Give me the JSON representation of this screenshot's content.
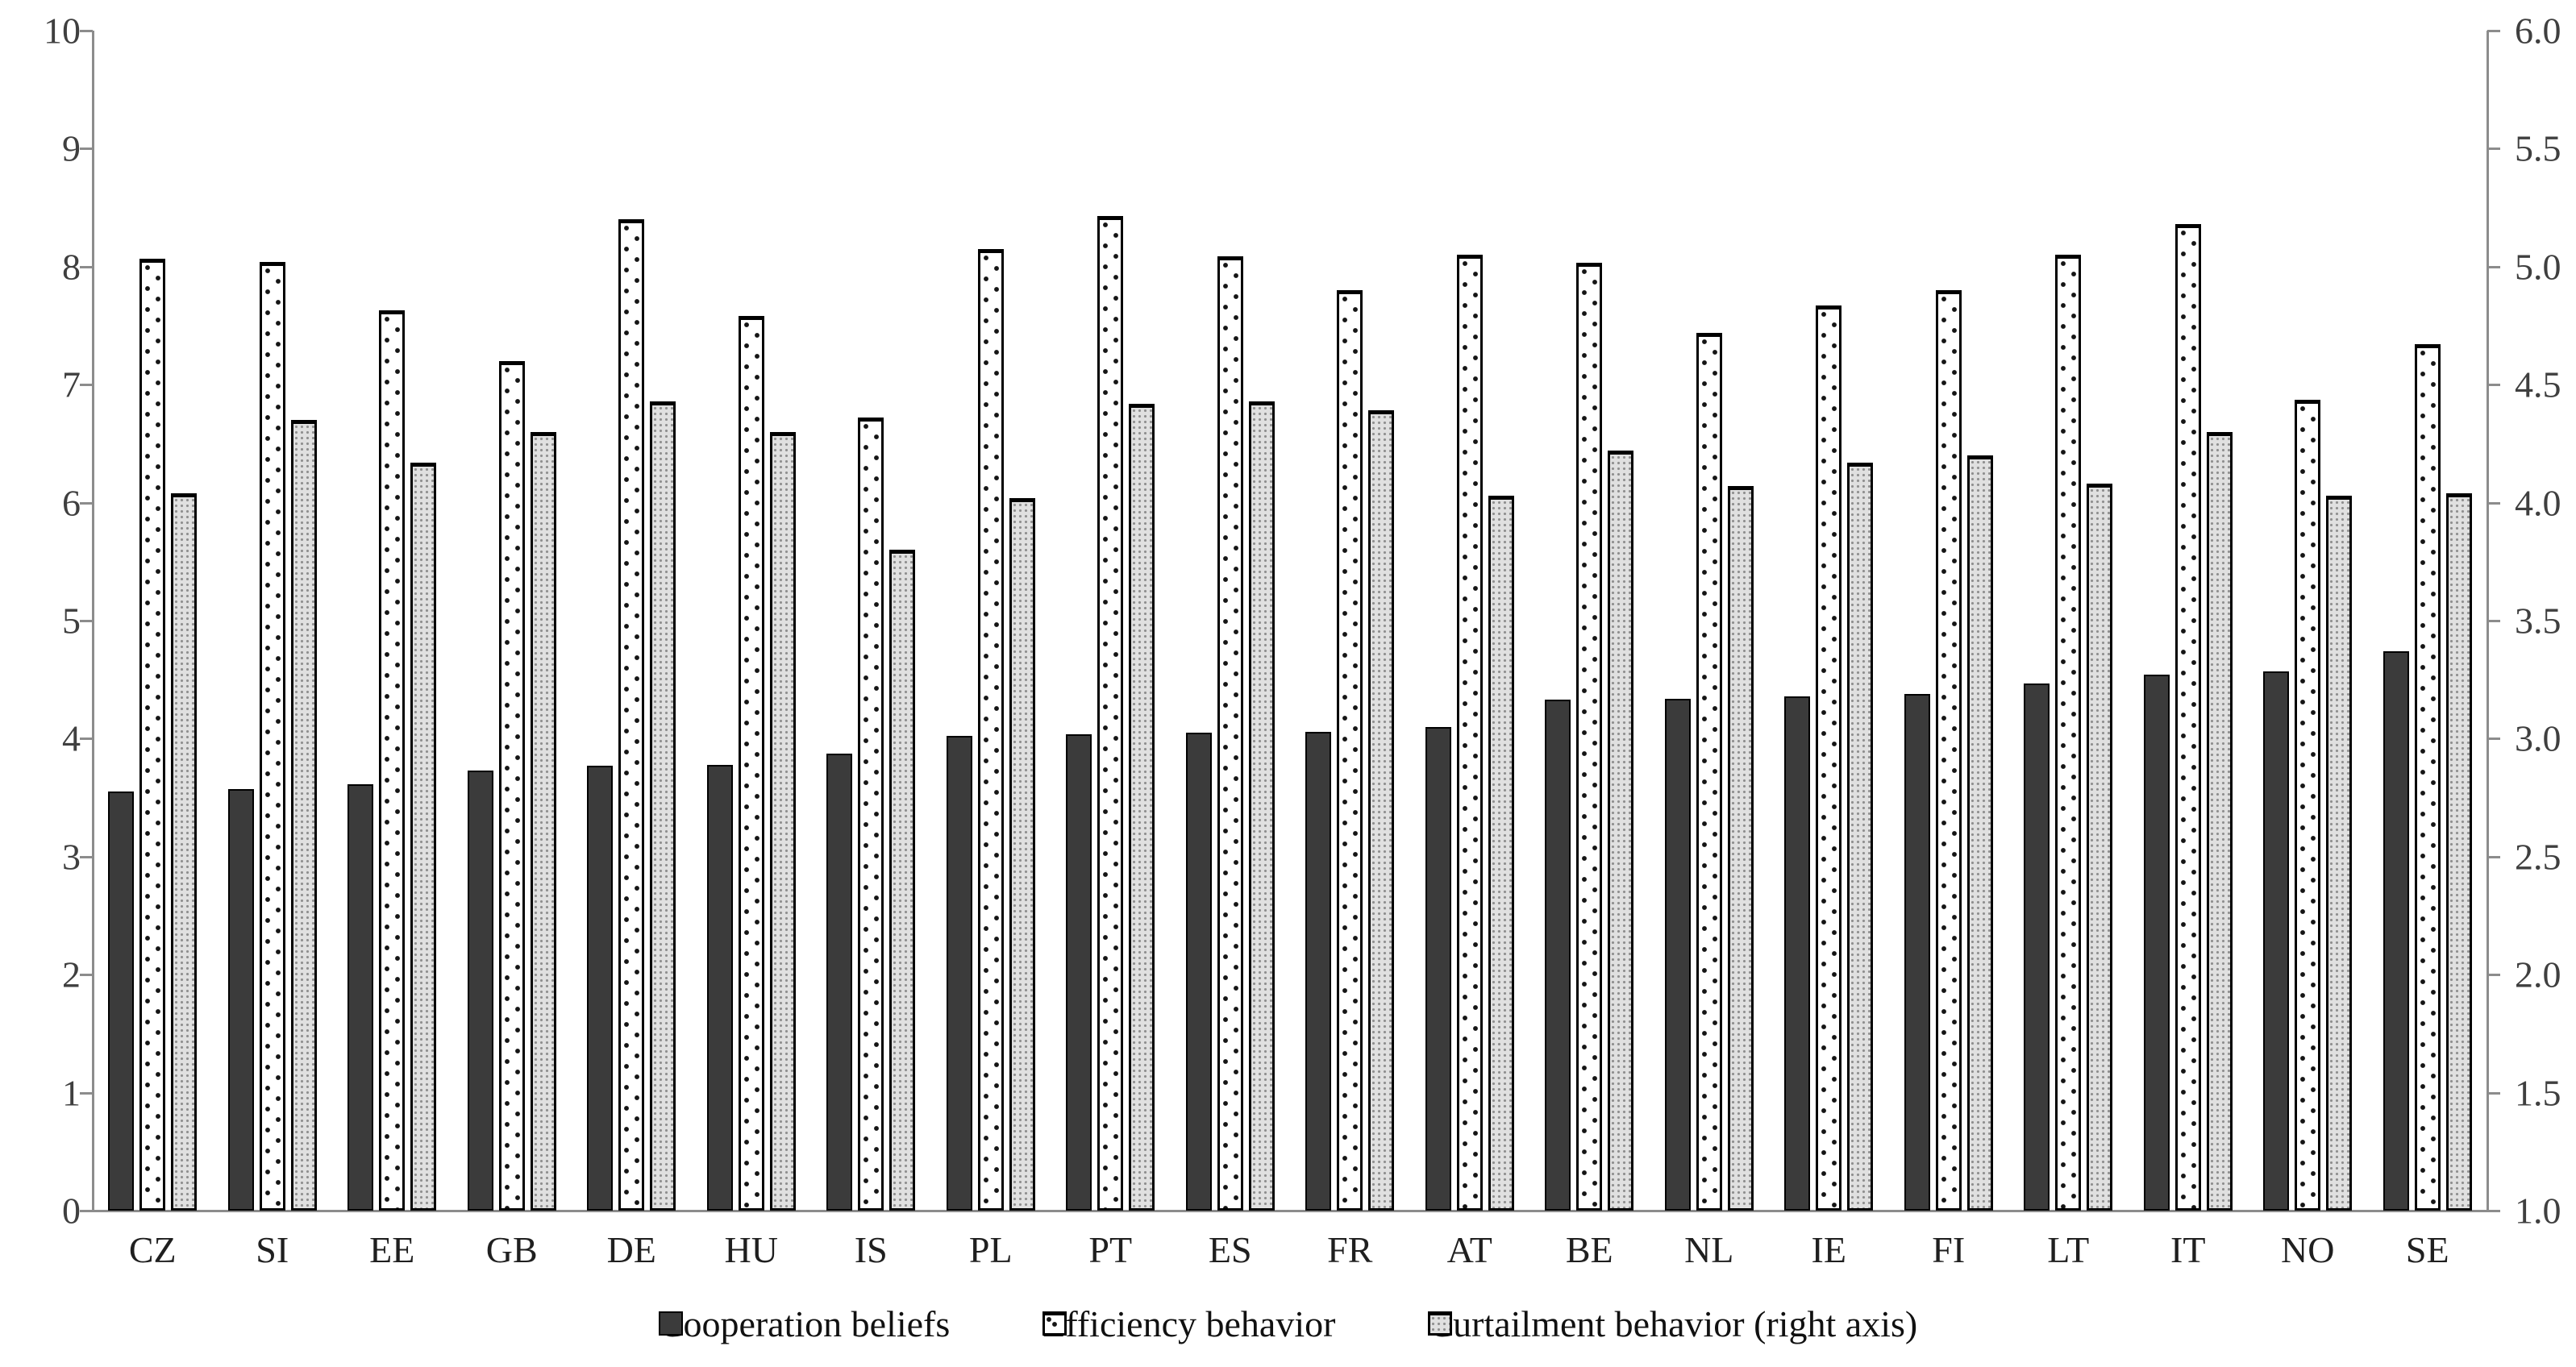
{
  "chart_data": {
    "type": "bar",
    "title": "",
    "categories": [
      "CZ",
      "SI",
      "EE",
      "GB",
      "DE",
      "HU",
      "IS",
      "PL",
      "PT",
      "ES",
      "FR",
      "AT",
      "BE",
      "NL",
      "IE",
      "FI",
      "LT",
      "IT",
      "NO",
      "SE"
    ],
    "series": [
      {
        "name": "Cooperation beliefs",
        "key": "cooperation",
        "axis": "left",
        "values": [
          3.55,
          3.57,
          3.61,
          3.73,
          3.77,
          3.78,
          3.87,
          4.02,
          4.04,
          4.05,
          4.06,
          4.1,
          4.33,
          4.34,
          4.36,
          4.38,
          4.47,
          4.54,
          4.57,
          4.74
        ]
      },
      {
        "name": "Efficiency behavior",
        "key": "efficiency",
        "axis": "left",
        "values": [
          8.07,
          8.04,
          7.63,
          7.2,
          8.4,
          7.58,
          6.72,
          8.15,
          8.43,
          8.09,
          7.8,
          8.1,
          8.03,
          7.44,
          7.67,
          7.8,
          8.1,
          8.36,
          6.87,
          7.34
        ]
      },
      {
        "name": "Curtailment behavior (right axis)",
        "key": "curtailment",
        "axis": "right",
        "values": [
          4.04,
          4.35,
          4.17,
          4.3,
          4.43,
          4.3,
          3.8,
          4.02,
          4.42,
          4.43,
          4.39,
          4.03,
          4.22,
          4.07,
          4.17,
          4.2,
          4.08,
          4.3,
          4.03,
          4.04
        ]
      }
    ],
    "left_axis": {
      "min": 0,
      "max": 10,
      "step": 1,
      "tick_labels": [
        "0",
        "1",
        "2",
        "3",
        "4",
        "5",
        "6",
        "7",
        "8",
        "9",
        "10"
      ]
    },
    "right_axis": {
      "min": 1.0,
      "max": 6.0,
      "step": 0.5,
      "tick_labels": [
        "1.0",
        "1.5",
        "2.0",
        "2.5",
        "3.0",
        "3.5",
        "4.0",
        "4.5",
        "5.0",
        "5.5",
        "6.0"
      ]
    },
    "grid": false,
    "legend_position": "bottom"
  },
  "colors": {
    "cooperation_fill": "#3b3b3b",
    "efficiency_fill": "#ffffff",
    "efficiency_dot": "#151515",
    "curtailment_fill": "#e0e0e0",
    "curtailment_dot": "#8f8f8f",
    "bar_border": "#000000",
    "axis_line": "#8c8c8c",
    "tick_text": "#3f3f3f"
  }
}
